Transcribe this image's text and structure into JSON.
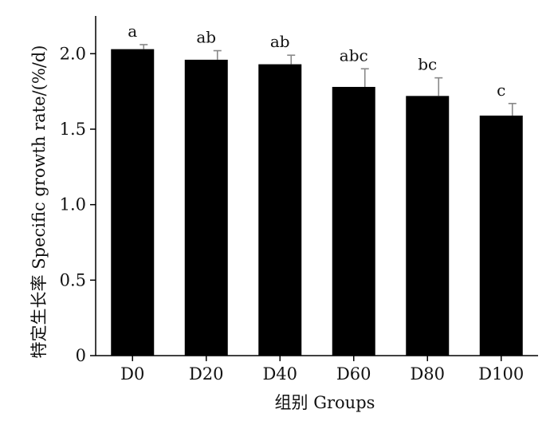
{
  "chart_data": {
    "type": "bar",
    "categories": [
      "D0",
      "D20",
      "D40",
      "D60",
      "D80",
      "D100"
    ],
    "values": [
      2.03,
      1.96,
      1.93,
      1.78,
      1.72,
      1.59
    ],
    "errors": [
      0.03,
      0.06,
      0.06,
      0.12,
      0.12,
      0.08
    ],
    "significance": [
      "a",
      "ab",
      "ab",
      "abc",
      "bc",
      "c"
    ],
    "xlabel": "组别  Groups",
    "ylabel": "特定生长率  Specific growth rate/(%/d)",
    "yticks": [
      "0",
      "0.5",
      "1.0",
      "1.5",
      "2.0"
    ],
    "ylim": [
      0,
      2.25
    ],
    "grid": false,
    "bar_color": "#000000"
  }
}
